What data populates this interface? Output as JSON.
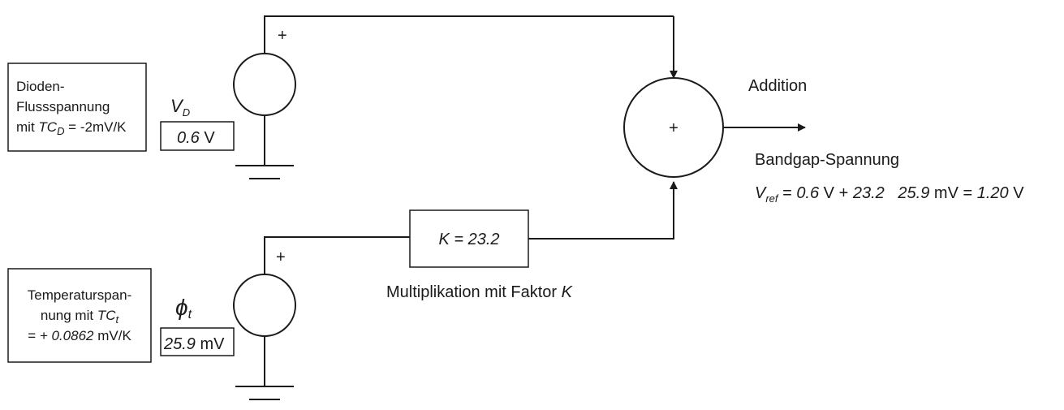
{
  "diode_box": {
    "line1": "Dioden-",
    "line2": "Flussspannung",
    "line3_prefix": "mit ",
    "tc_symbol": "TC",
    "tc_sub": "D",
    "line3_suffix": " = -2mV/K"
  },
  "diode_source": {
    "plus": "+",
    "symbol": "V",
    "symbol_sub": "D",
    "value": "0.6",
    "unit": " V"
  },
  "temp_box": {
    "line1": "Temperaturspan-",
    "line2_prefix": "nung mit ",
    "tc_symbol": "TC",
    "tc_sub": "t",
    "line3_prefix": "= ",
    "line3_value": "+ 0.0862",
    "line3_unit": " mV/K"
  },
  "temp_source": {
    "plus": "+",
    "symbol": "ϕ",
    "symbol_sub": "t",
    "value": "25.9",
    "unit": " mV"
  },
  "multiplier": {
    "label": "K = 23.2",
    "caption_prefix": "Multiplikation mit Faktor ",
    "caption_symbol": "K"
  },
  "adder": {
    "symbol": "+",
    "caption": "Addition"
  },
  "output": {
    "caption": "Bandgap-Spannung",
    "vref_symbol": "V",
    "vref_sub": "ref",
    "eq_part1": " = ",
    "eq_part2": "0.6",
    "eq_part3": " V + ",
    "eq_part4": "23.2   25.9",
    "eq_part5": " mV = ",
    "eq_part6": "1.20",
    "eq_part7": " V"
  }
}
